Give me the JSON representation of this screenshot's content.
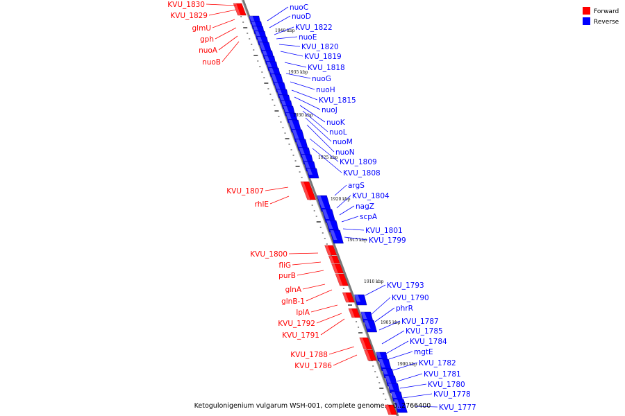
{
  "caption": "Ketogulonigenium vulgarum WSH-001, complete genome. - 0..2766400",
  "colors": {
    "forward": "#ff0000",
    "reverse": "#0000ff",
    "axis": "#777777"
  },
  "legend": [
    {
      "label": "Forward",
      "color": "#ff0000"
    },
    {
      "label": "Reverse",
      "color": "#0000ff"
    }
  ],
  "ticks": [
    "1940 kbp",
    "1935 kbp",
    "1930 kbp",
    "1925 kbp",
    "1920 kbp",
    "1915 kbp",
    "1910 kbp",
    "1905 kbp",
    "1900 kbp"
  ],
  "forward_labels": [
    "KVU_1830",
    "KVU_1829",
    "glmU",
    "gph",
    "nuoA",
    "nuoB",
    "KVU_1807",
    "rhlE",
    "KVU_1800",
    "fliG",
    "purB",
    "glnA",
    "glnB-1",
    "lplA",
    "KVU_1792",
    "KVU_1791",
    "KVU_1788",
    "KVU_1786"
  ],
  "reverse_labels": [
    "nuoC",
    "nuoD",
    "KVU_1822",
    "nuoE",
    "KVU_1820",
    "KVU_1819",
    "KVU_1818",
    "nuoG",
    "nuoH",
    "KVU_1815",
    "nuoJ",
    "nuoK",
    "nuoL",
    "nuoM",
    "nuoN",
    "KVU_1809",
    "KVU_1808",
    "argS",
    "KVU_1804",
    "nagZ",
    "scpA",
    "KVU_1801",
    "KVU_1799",
    "KVU_1793",
    "KVU_1790",
    "phrR",
    "KVU_1787",
    "KVU_1785",
    "KVU_1784",
    "mgtE",
    "KVU_1782",
    "KVU_1781",
    "KVU_1780",
    "KVU_1778",
    "KVU_1777"
  ]
}
